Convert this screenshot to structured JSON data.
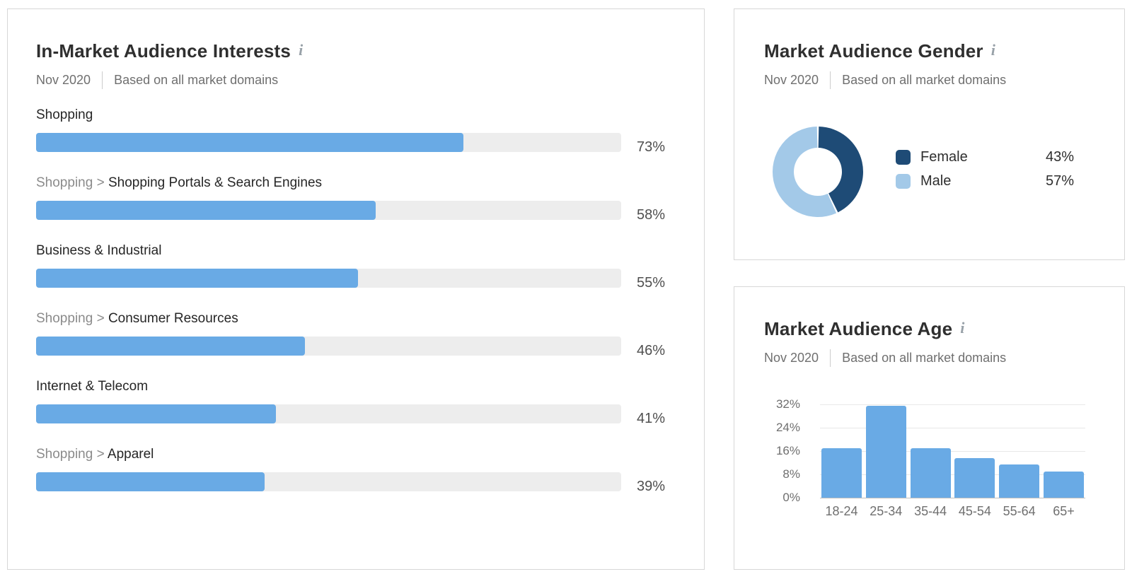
{
  "info_icon_glyph": "i",
  "colors": {
    "bar_blue": "#69AAE5",
    "bar_track": "#EDEDED",
    "donut_female": "#1E4B76",
    "donut_male": "#A3C9E8"
  },
  "interests_panel": {
    "title": "In-Market Audience Interests",
    "date": "Nov 2020",
    "scope": "Based on all market domains",
    "rows": [
      {
        "prefix": "",
        "label": "Shopping",
        "value": 73,
        "value_label": "73%"
      },
      {
        "prefix": "Shopping > ",
        "label": "Shopping Portals & Search Engines",
        "value": 58,
        "value_label": "58%"
      },
      {
        "prefix": "",
        "label": "Business & Industrial",
        "value": 55,
        "value_label": "55%"
      },
      {
        "prefix": "Shopping > ",
        "label": "Consumer Resources",
        "value": 46,
        "value_label": "46%"
      },
      {
        "prefix": "",
        "label": "Internet & Telecom",
        "value": 41,
        "value_label": "41%"
      },
      {
        "prefix": "Shopping > ",
        "label": "Apparel",
        "value": 39,
        "value_label": "39%"
      }
    ]
  },
  "gender_panel": {
    "title": "Market Audience Gender",
    "date": "Nov 2020",
    "scope": "Based on all market domains",
    "legend": [
      {
        "label": "Female",
        "value": 43,
        "value_label": "43%",
        "color": "#1E4B76"
      },
      {
        "label": "Male",
        "value": 57,
        "value_label": "57%",
        "color": "#A3C9E8"
      }
    ]
  },
  "age_panel": {
    "title": "Market Audience Age",
    "date": "Nov 2020",
    "scope": "Based on all market domains",
    "y_tick_labels": [
      "32%",
      "24%",
      "16%",
      "8%",
      "0%"
    ],
    "categories": [
      "18-24",
      "25-34",
      "35-44",
      "45-54",
      "55-64",
      "65+"
    ],
    "values": [
      17,
      31.5,
      17,
      13.5,
      11.5,
      9
    ],
    "y_max": 32
  },
  "chart_data": [
    {
      "type": "bar",
      "orientation": "horizontal",
      "title": "In-Market Audience Interests",
      "subtitle": "Nov 2020 | Based on all market domains",
      "categories": [
        "Shopping",
        "Shopping > Shopping Portals & Search Engines",
        "Business & Industrial",
        "Shopping > Consumer Resources",
        "Internet & Telecom",
        "Shopping > Apparel"
      ],
      "values": [
        73,
        58,
        55,
        46,
        41,
        39
      ],
      "unit": "%",
      "xlim": [
        0,
        100
      ],
      "bar_color": "#69AAE5",
      "track_color": "#EDEDED",
      "grid": false,
      "value_labels": [
        "73%",
        "58%",
        "55%",
        "46%",
        "41%",
        "39%"
      ]
    },
    {
      "type": "pie",
      "subtype": "donut",
      "title": "Market Audience Gender",
      "subtitle": "Nov 2020 | Based on all market domains",
      "labels": [
        "Female",
        "Male"
      ],
      "values": [
        43,
        57
      ],
      "unit": "%",
      "colors": [
        "#1E4B76",
        "#A3C9E8"
      ],
      "start_angle_deg": 0,
      "direction": "clockwise",
      "legend_position": "right"
    },
    {
      "type": "bar",
      "orientation": "vertical",
      "title": "Market Audience Age",
      "subtitle": "Nov 2020 | Based on all market domains",
      "categories": [
        "18-24",
        "25-34",
        "35-44",
        "45-54",
        "55-64",
        "65+"
      ],
      "values": [
        17,
        31.5,
        17,
        13.5,
        11.5,
        9
      ],
      "unit": "%",
      "ylim": [
        0,
        32
      ],
      "y_ticks": [
        0,
        8,
        16,
        24,
        32
      ],
      "bar_color": "#69AAE5",
      "grid": true,
      "legend_position": "none"
    }
  ]
}
